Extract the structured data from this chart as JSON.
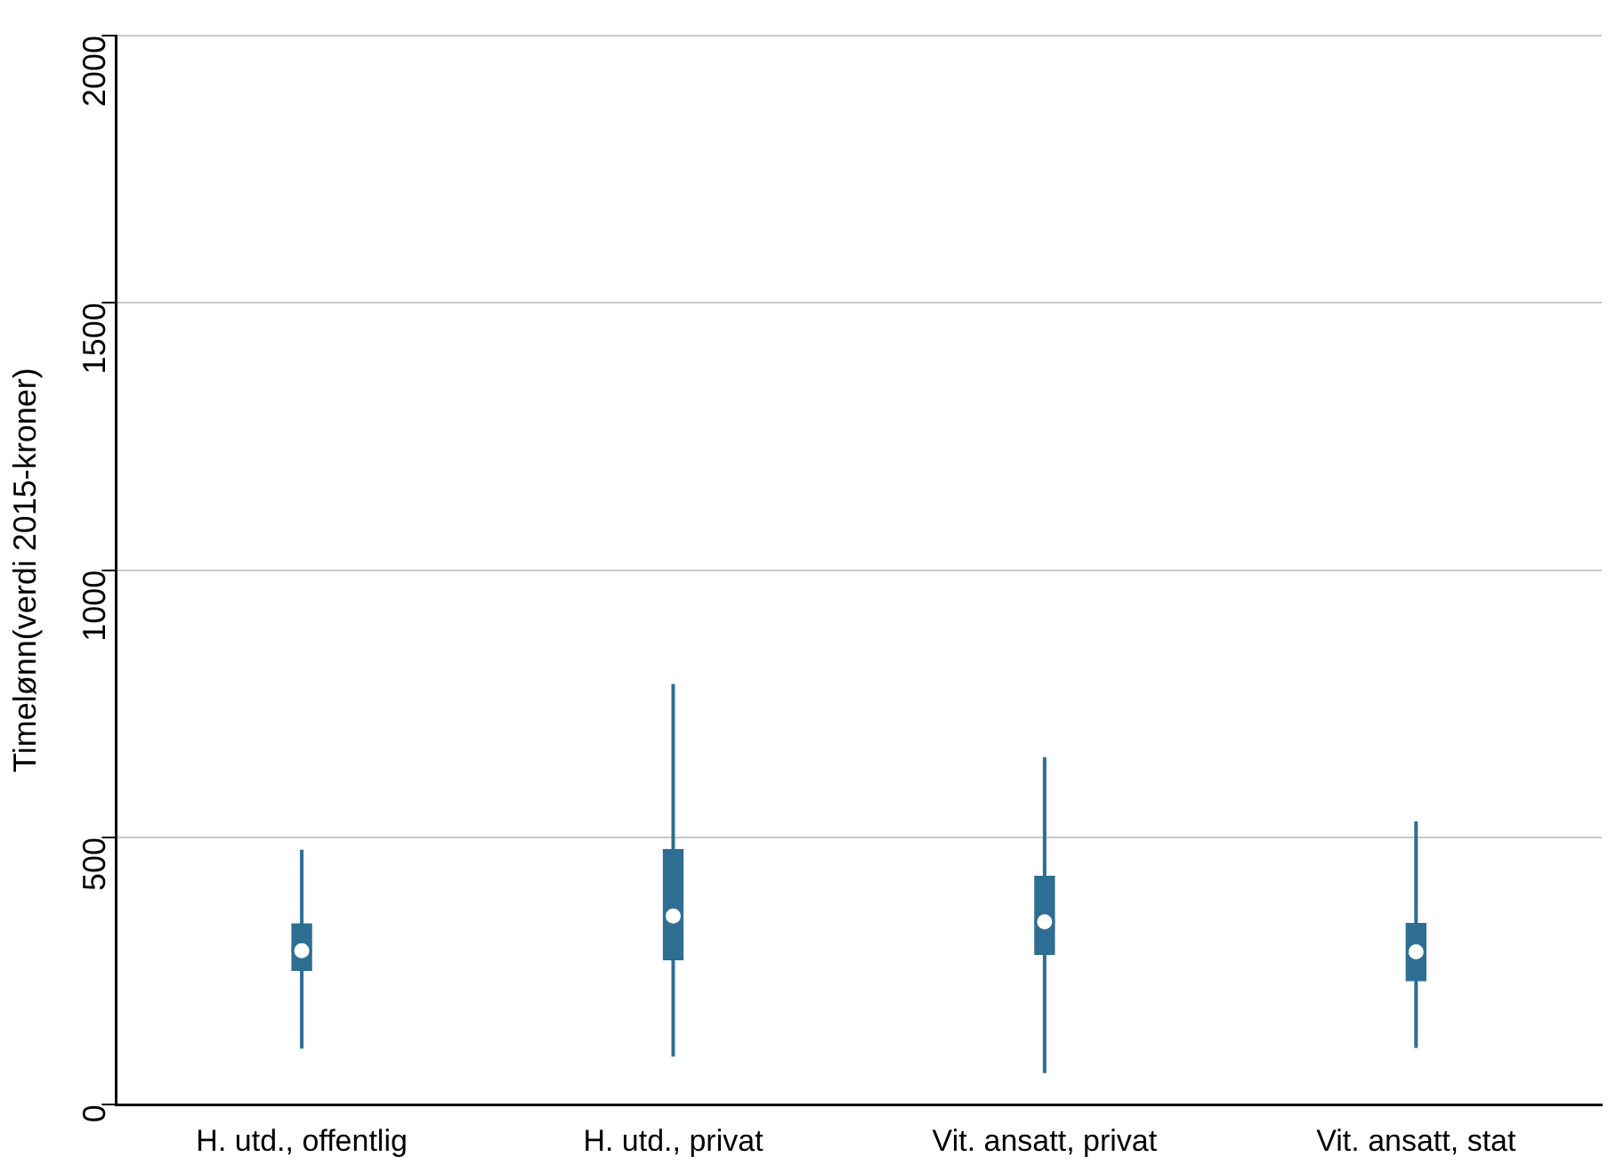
{
  "chart_data": {
    "type": "box",
    "ylabel": "Timelønn(verdi 2015-kroner)",
    "categories": [
      "H. utd., offentlig",
      "H. utd., privat",
      "Vit. ansatt, privat",
      "Vit. ansatt, stat"
    ],
    "boxes": [
      {
        "low": 105,
        "q1": 251,
        "median": 288,
        "q3": 338,
        "high": 477
      },
      {
        "low": 90,
        "q1": 271,
        "median": 353,
        "q3": 477,
        "high": 787
      },
      {
        "low": 59,
        "q1": 281,
        "median": 342,
        "q3": 427,
        "high": 650
      },
      {
        "low": 106,
        "q1": 232,
        "median": 286,
        "q3": 339,
        "high": 530
      }
    ],
    "color": "#2e6e93",
    "ylim": [
      0,
      2000
    ],
    "yticks": [
      0,
      500,
      1000,
      1500,
      2000
    ],
    "grid": "y"
  }
}
